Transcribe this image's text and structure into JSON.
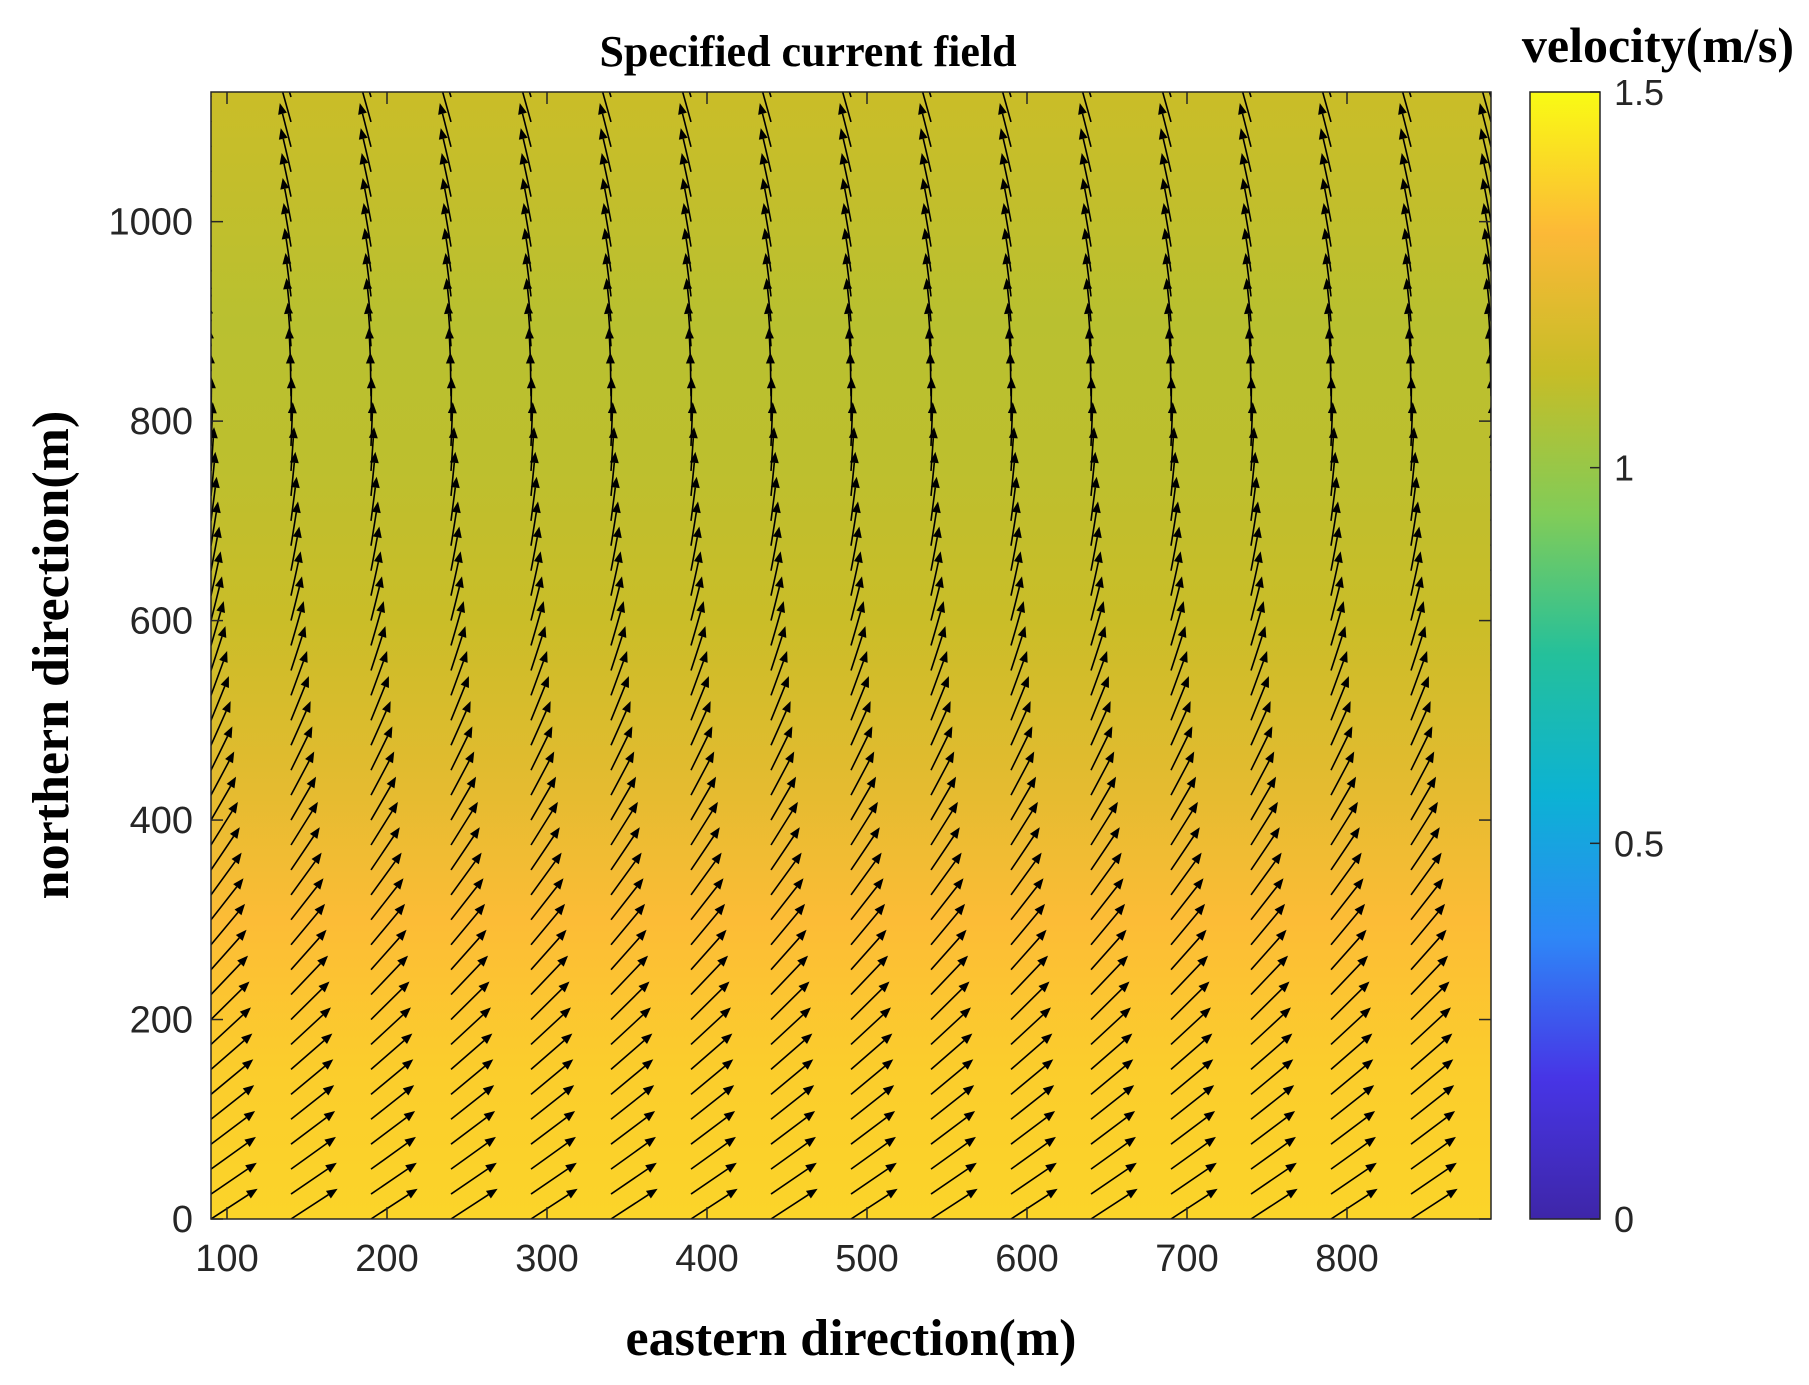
{
  "chart_data": {
    "type": "quiver",
    "title": "Specified current field",
    "xlabel": "eastern direction(m)",
    "ylabel": "northern direction(m)",
    "xlim": [
      90,
      890
    ],
    "ylim": [
      0,
      1130
    ],
    "x_ticks": [
      "100",
      "200",
      "300",
      "400",
      "500",
      "600",
      "700",
      "800"
    ],
    "y_ticks": [
      "0",
      "200",
      "400",
      "600",
      "800",
      "1000"
    ],
    "grid": false,
    "arrow_color": "#000000",
    "vector_grid": {
      "x_start": 90,
      "x_step": 50,
      "x_count": 17,
      "y_start": 0,
      "y_step": 25,
      "y_count": 46
    },
    "velocity_profile": [
      {
        "y": 0,
        "speed": 1.39,
        "angle_deg": 33
      },
      {
        "y": 150,
        "speed": 1.37,
        "angle_deg": 41
      },
      {
        "y": 300,
        "speed": 1.32,
        "angle_deg": 52
      },
      {
        "y": 450,
        "speed": 1.22,
        "angle_deg": 64
      },
      {
        "y": 600,
        "speed": 1.14,
        "angle_deg": 76
      },
      {
        "y": 750,
        "speed": 1.1,
        "angle_deg": 86
      },
      {
        "y": 900,
        "speed": 1.09,
        "angle_deg": 96
      },
      {
        "y": 1130,
        "speed": 1.14,
        "angle_deg": 107
      }
    ],
    "colorbar": {
      "label": "velocity(m/s)",
      "range": [
        0,
        1.5
      ],
      "ticks": [
        "0",
        "0.5",
        "1",
        "1.5"
      ],
      "colormap": [
        "#3e26a8",
        "#4735e6",
        "#2e87f7",
        "#0cb2d4",
        "#24c09b",
        "#81cc58",
        "#c6bd27",
        "#fcb937",
        "#f9fb14"
      ]
    }
  }
}
